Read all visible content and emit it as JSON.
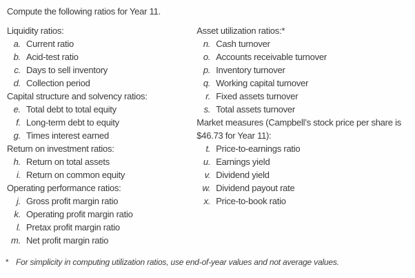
{
  "intro": "Compute the following ratios for Year 11.",
  "columns": [
    {
      "sections": [
        {
          "heading": "Liquidity ratios:",
          "items": [
            {
              "letter": "a.",
              "label": "Current ratio"
            },
            {
              "letter": "b.",
              "label": "Acid-test ratio"
            },
            {
              "letter": "c.",
              "label": "Days to sell inventory"
            },
            {
              "letter": "d.",
              "label": "Collection period"
            }
          ]
        },
        {
          "heading": "Capital structure and solvency ratios:",
          "items": [
            {
              "letter": "e.",
              "label": "Total debt to total equity"
            },
            {
              "letter": "f.",
              "label": "Long-term debt to equity"
            },
            {
              "letter": "g.",
              "label": "Times interest earned"
            }
          ]
        },
        {
          "heading": "Return on investment ratios:",
          "items": [
            {
              "letter": "h.",
              "label": "Return on total assets"
            },
            {
              "letter": "i.",
              "label": "Return on common equity"
            }
          ]
        },
        {
          "heading": "Operating performance ratios:",
          "items": [
            {
              "letter": "j.",
              "label": "Gross profit margin ratio"
            },
            {
              "letter": "k.",
              "label": "Operating profit margin ratio"
            },
            {
              "letter": "l.",
              "label": "Pretax profit margin ratio"
            },
            {
              "letter": "m.",
              "label": "Net profit margin ratio"
            }
          ]
        }
      ]
    },
    {
      "sections": [
        {
          "heading": "Asset utilization ratios:*",
          "items": [
            {
              "letter": "n.",
              "label": "Cash turnover"
            },
            {
              "letter": "o.",
              "label": "Accounts receivable turnover"
            },
            {
              "letter": "p.",
              "label": "Inventory turnover"
            },
            {
              "letter": "q.",
              "label": "Working capital turnover"
            },
            {
              "letter": "r.",
              "label": "Fixed assets turnover"
            },
            {
              "letter": "s.",
              "label": "Total assets turnover"
            }
          ]
        },
        {
          "heading": "Market measures (Campbell’s stock price per share is\n$46.73 for Year 11):",
          "items": [
            {
              "letter": "t.",
              "label": "Price-to-earnings ratio"
            },
            {
              "letter": "u.",
              "label": "Earnings yield"
            },
            {
              "letter": "v.",
              "label": "Dividend yield"
            },
            {
              "letter": "w.",
              "label": "Dividend payout rate"
            },
            {
              "letter": "x.",
              "label": "Price-to-book ratio"
            }
          ]
        }
      ]
    }
  ],
  "footnote": {
    "marker": "*",
    "text": "For simplicity in computing utilization ratios, use end-of-year values and not average values."
  }
}
